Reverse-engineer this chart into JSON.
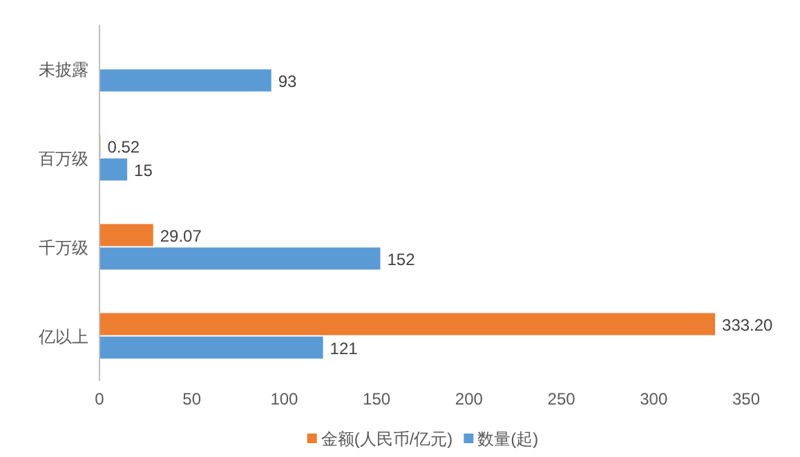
{
  "chart_data": {
    "type": "bar",
    "orientation": "horizontal",
    "categories": [
      "未披露",
      "百万级",
      "千万级",
      "亿以上"
    ],
    "series": [
      {
        "name": "金额(人民币/亿元)",
        "color": "#ed7d31",
        "values": [
          null,
          0.52,
          29.07,
          333.2
        ],
        "value_labels": [
          null,
          "0.52",
          "29.07",
          "333.20"
        ]
      },
      {
        "name": "数量(起)",
        "color": "#5b9bd5",
        "values": [
          93,
          15,
          152,
          121
        ],
        "value_labels": [
          "93",
          "15",
          "152",
          "121"
        ]
      }
    ],
    "xlim": [
      0,
      350
    ],
    "xticks": [
      0,
      50,
      100,
      150,
      200,
      250,
      300,
      350
    ],
    "legend": "bottom"
  }
}
